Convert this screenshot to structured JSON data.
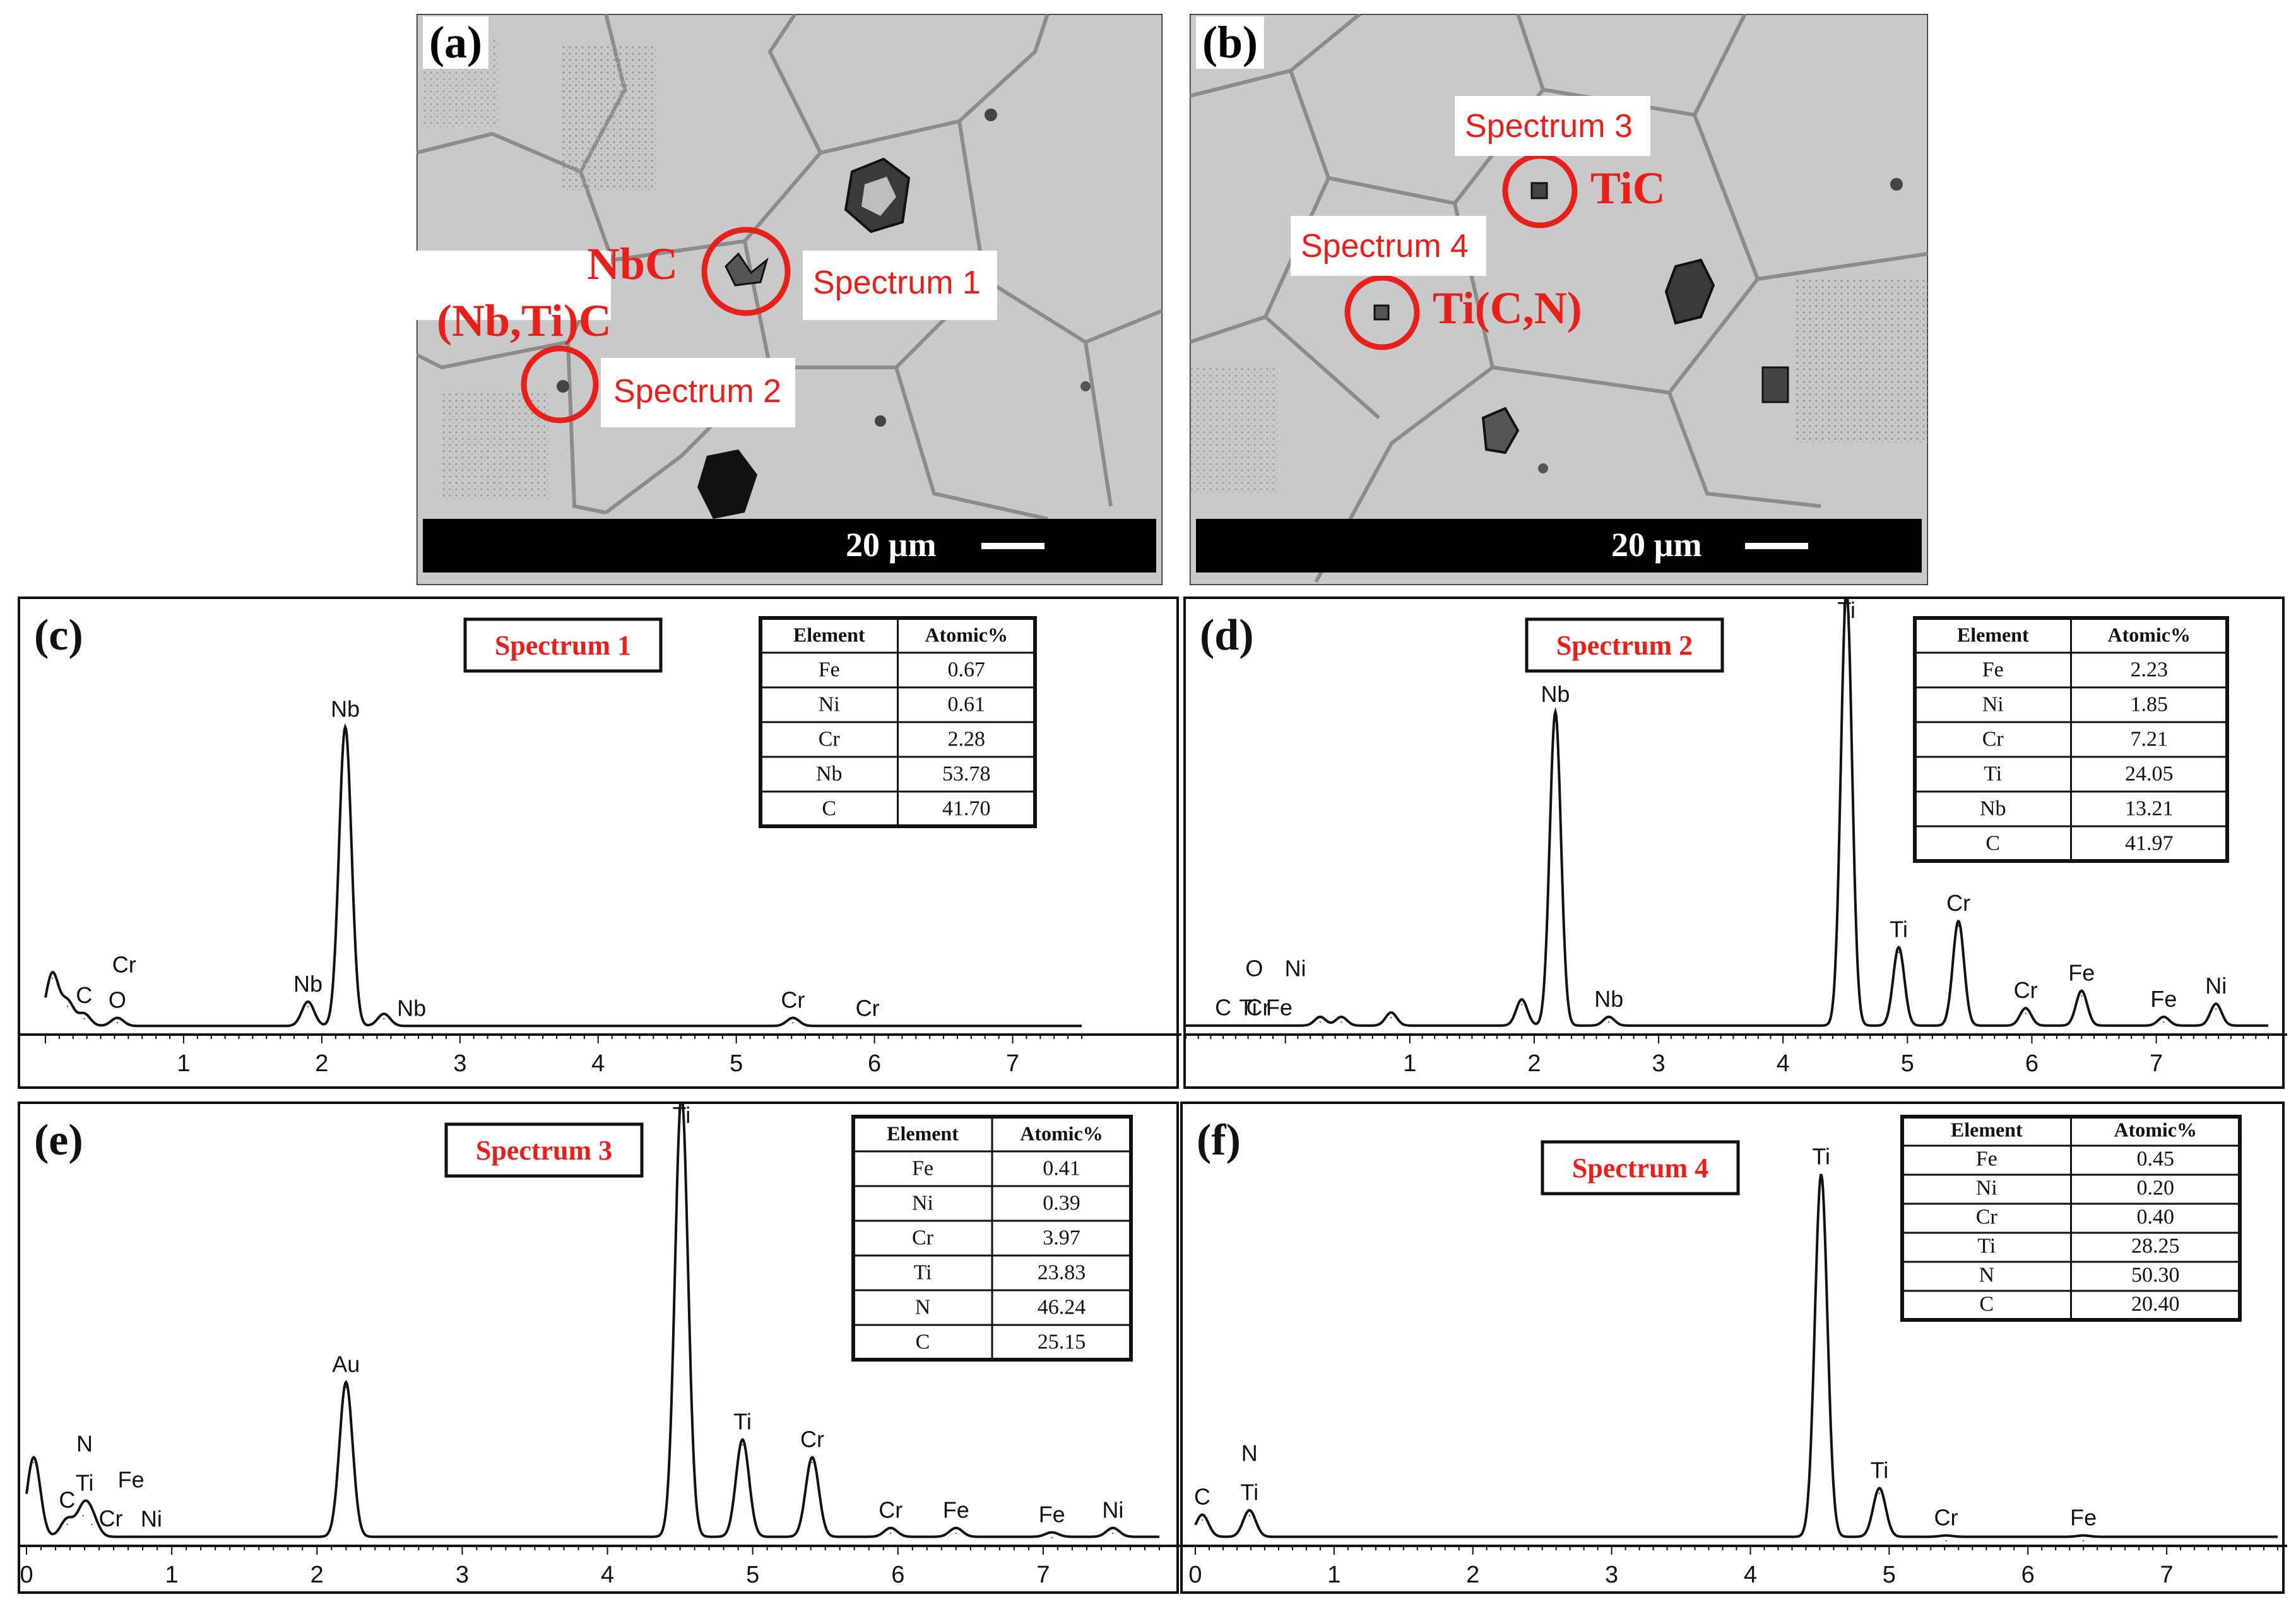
{
  "sem": {
    "a": {
      "label": "(a)",
      "scalebar": "20 µm",
      "phases": [
        "NbC",
        "(Nb,Ti)C"
      ],
      "spectra": [
        "Spectrum 1",
        "Spectrum 2"
      ]
    },
    "b": {
      "label": "(b)",
      "scalebar": "20 µm",
      "phases": [
        "TiC",
        "Ti(C,N)"
      ],
      "spectra": [
        "Spectrum 3",
        "Spectrum 4"
      ]
    }
  },
  "table_header": [
    "Element",
    "Atomic%"
  ],
  "colors": {
    "red": "#e8201c",
    "frame": "#111111",
    "sem_bg": "#c8c8c8"
  },
  "chart_data": [
    {
      "type": "line",
      "panel": "(c)",
      "title": "Spectrum 1",
      "x_ticks": [
        "1",
        "2",
        "3",
        "4",
        "5",
        "6",
        "7"
      ],
      "xlim": [
        0,
        7.5
      ],
      "peaks": [
        {
          "x": 0.05,
          "h": 0.13
        },
        {
          "x": 0.16,
          "h": 0.06
        },
        {
          "x": 0.28,
          "h": 0.03
        },
        {
          "x": 0.52,
          "h": 0.02
        },
        {
          "x": 1.9,
          "h": 0.06
        },
        {
          "x": 2.17,
          "h": 0.74
        },
        {
          "x": 2.45,
          "h": 0.03
        },
        {
          "x": 5.41,
          "h": 0.02
        }
      ],
      "peak_labels": [
        {
          "text": "Nb",
          "x": 2.17
        },
        {
          "text": "C",
          "x": 0.28
        },
        {
          "text": "O",
          "x": 0.52
        },
        {
          "text": "Cr",
          "x": 0.57
        },
        {
          "text": "Nb",
          "x": 1.9
        },
        {
          "text": "Nb",
          "x": 2.65
        },
        {
          "text": "Cr",
          "x": 5.41
        },
        {
          "text": "Cr",
          "x": 5.95
        }
      ],
      "table": [
        [
          "Fe",
          "0.67"
        ],
        [
          "Ni",
          "0.61"
        ],
        [
          "Cr",
          "2.28"
        ],
        [
          "Nb",
          "53.78"
        ],
        [
          "C",
          "41.70"
        ]
      ]
    },
    {
      "type": "line",
      "panel": "(d)",
      "title": "Spectrum 2",
      "x_ticks": [
        "1",
        "2",
        "3",
        "4",
        "5",
        "6",
        "7"
      ],
      "xlim": [
        -0.8,
        7.9
      ],
      "peaks": [
        {
          "x": 0.28,
          "h": 0.02
        },
        {
          "x": 0.45,
          "h": 0.02
        },
        {
          "x": 0.85,
          "h": 0.03
        },
        {
          "x": 1.9,
          "h": 0.06
        },
        {
          "x": 2.17,
          "h": 0.72
        },
        {
          "x": 2.6,
          "h": 0.02
        },
        {
          "x": 4.51,
          "h": 1.0
        },
        {
          "x": 4.93,
          "h": 0.18
        },
        {
          "x": 5.41,
          "h": 0.24
        },
        {
          "x": 5.95,
          "h": 0.04
        },
        {
          "x": 6.4,
          "h": 0.08
        },
        {
          "x": 7.06,
          "h": 0.02
        },
        {
          "x": 7.48,
          "h": 0.05
        }
      ],
      "peak_labels": [
        {
          "text": "Ti",
          "x": 4.51
        },
        {
          "text": "Nb",
          "x": 2.17
        },
        {
          "text": "C",
          "x": -0.5
        },
        {
          "text": "Fe",
          "x": -0.05
        },
        {
          "text": "Cr",
          "x": -0.22
        },
        {
          "text": "O",
          "x": -0.25
        },
        {
          "text": "Ti",
          "x": -0.3
        },
        {
          "text": "Ni",
          "x": 0.08
        },
        {
          "text": "Nb",
          "x": 2.6
        },
        {
          "text": "Ti",
          "x": 4.93
        },
        {
          "text": "Cr",
          "x": 5.41
        },
        {
          "text": "Cr",
          "x": 5.95
        },
        {
          "text": "Fe",
          "x": 6.4
        },
        {
          "text": "Fe",
          "x": 7.06
        },
        {
          "text": "Ni",
          "x": 7.48
        }
      ],
      "table": [
        [
          "Fe",
          "2.23"
        ],
        [
          "Ni",
          "1.85"
        ],
        [
          "Cr",
          "7.21"
        ],
        [
          "Ti",
          "24.05"
        ],
        [
          "Nb",
          "13.21"
        ],
        [
          "C",
          "41.97"
        ]
      ]
    },
    {
      "type": "line",
      "panel": "(e)",
      "title": "Spectrum 3",
      "x_ticks": [
        "0",
        "1",
        "2",
        "3",
        "4",
        "5",
        "6",
        "7"
      ],
      "xlim": [
        0,
        7.8
      ],
      "peaks": [
        {
          "x": 0.05,
          "h": 0.18
        },
        {
          "x": 0.28,
          "h": 0.04
        },
        {
          "x": 0.39,
          "h": 0.06
        },
        {
          "x": 0.45,
          "h": 0.04
        },
        {
          "x": 2.2,
          "h": 0.35
        },
        {
          "x": 4.51,
          "h": 1.0
        },
        {
          "x": 4.93,
          "h": 0.22
        },
        {
          "x": 5.41,
          "h": 0.18
        },
        {
          "x": 5.95,
          "h": 0.02
        },
        {
          "x": 6.4,
          "h": 0.02
        },
        {
          "x": 7.06,
          "h": 0.01
        },
        {
          "x": 7.48,
          "h": 0.02
        }
      ],
      "peak_labels": [
        {
          "text": "Ti",
          "x": 4.51
        },
        {
          "text": "Au",
          "x": 2.2
        },
        {
          "text": "Ti",
          "x": 0.4
        },
        {
          "text": "N",
          "x": 0.4
        },
        {
          "text": "Cr",
          "x": 0.58
        },
        {
          "text": "Ni",
          "x": 0.86
        },
        {
          "text": "C",
          "x": 0.28
        },
        {
          "text": "Fe",
          "x": 0.72
        },
        {
          "text": "Ti",
          "x": 4.93
        },
        {
          "text": "Cr",
          "x": 5.41
        },
        {
          "text": "Cr",
          "x": 5.95
        },
        {
          "text": "Fe",
          "x": 6.4
        },
        {
          "text": "Fe",
          "x": 7.06
        },
        {
          "text": "Ni",
          "x": 7.48
        }
      ],
      "table": [
        [
          "Fe",
          "0.41"
        ],
        [
          "Ni",
          "0.39"
        ],
        [
          "Cr",
          "3.97"
        ],
        [
          "Ti",
          "23.83"
        ],
        [
          "N",
          "46.24"
        ],
        [
          "C",
          "25.15"
        ]
      ]
    },
    {
      "type": "line",
      "panel": "(f)",
      "title": "Spectrum 4",
      "x_ticks": [
        "0",
        "1",
        "2",
        "3",
        "4",
        "5",
        "6",
        "7"
      ],
      "xlim": [
        0,
        7.8
      ],
      "peaks": [
        {
          "x": 0.05,
          "h": 0.05
        },
        {
          "x": 0.39,
          "h": 0.06
        },
        {
          "x": 4.51,
          "h": 0.82
        },
        {
          "x": 4.93,
          "h": 0.11
        },
        {
          "x": 5.41,
          "h": 0.003
        },
        {
          "x": 6.4,
          "h": 0.003
        }
      ],
      "peak_labels": [
        {
          "text": "Ti",
          "x": 4.51
        },
        {
          "text": "C",
          "x": 0.05
        },
        {
          "text": "Ti",
          "x": 0.39
        },
        {
          "text": "N",
          "x": 0.39
        },
        {
          "text": "Ti",
          "x": 4.93
        },
        {
          "text": "Cr",
          "x": 5.41
        },
        {
          "text": "Fe",
          "x": 6.4
        }
      ],
      "table": [
        [
          "Fe",
          "0.45"
        ],
        [
          "Ni",
          "0.20"
        ],
        [
          "Cr",
          "0.40"
        ],
        [
          "Ti",
          "28.25"
        ],
        [
          "N",
          "50.30"
        ],
        [
          "C",
          "20.40"
        ]
      ]
    }
  ]
}
